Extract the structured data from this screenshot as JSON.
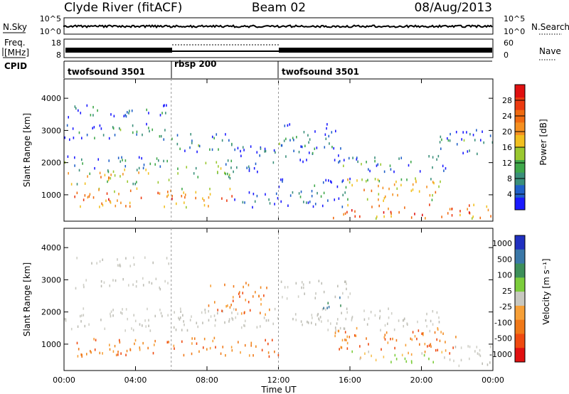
{
  "header": {
    "radar": "Clyde River (fitACF)",
    "beam": "Beam 02",
    "date": "08/Aug/2013"
  },
  "noise_panel": {
    "left_label": "N.Sky",
    "right_label": "N.Search",
    "left_ticks": [
      "10^5",
      "10^0"
    ],
    "right_ticks": [
      "10^5",
      "10^0"
    ]
  },
  "freq_panel": {
    "left_label_line1": "Freq.",
    "left_label_line2": "[MHz]",
    "right_label": "Nave",
    "left_ticks": [
      "18",
      "8"
    ],
    "right_ticks": [
      "60",
      "0"
    ]
  },
  "cpid_panel": {
    "label": "CPID",
    "programs": [
      {
        "name": "twofsound 3501",
        "start_hour": 0,
        "end_hour": 6
      },
      {
        "name": "rbsp 200",
        "start_hour": 6,
        "end_hour": 12
      },
      {
        "name": "twofsound 3501",
        "start_hour": 12,
        "end_hour": 24
      }
    ]
  },
  "chart_data": [
    {
      "type": "heatmap",
      "name": "power",
      "ylabel": "Slant Range [km]",
      "ylim": [
        180,
        4600
      ],
      "yticks": [
        "1000",
        "2000",
        "3000",
        "4000"
      ],
      "ytick_values": [
        1000,
        2000,
        3000,
        4000
      ],
      "colorbar": {
        "label": "Power [dB]",
        "ticks": [
          "4",
          "8",
          "12",
          "16",
          "20",
          "24",
          "28"
        ],
        "tick_values": [
          4,
          8,
          12,
          16,
          20,
          24,
          28
        ],
        "range": [
          0,
          32
        ],
        "colors": [
          "#1a1aff",
          "#2060c8",
          "#3a8f7a",
          "#3fa84a",
          "#9ac830",
          "#f2c020",
          "#f59020",
          "#f06a10",
          "#ec3a10",
          "#e01010"
        ]
      },
      "bands": [
        {
          "t0": 0.0,
          "t1": 6.0,
          "r0": 3400,
          "r1": 3800,
          "level": 9
        },
        {
          "t0": 0.0,
          "t1": 6.0,
          "r0": 2700,
          "r1": 3200,
          "level": 10
        },
        {
          "t0": 0.0,
          "t1": 6.0,
          "r0": 1800,
          "r1": 2200,
          "level": 11
        },
        {
          "t0": 0.0,
          "t1": 6.0,
          "r0": 1300,
          "r1": 1800,
          "level": 20
        },
        {
          "t0": 0.5,
          "t1": 6.0,
          "r0": 600,
          "r1": 1200,
          "level": 26
        },
        {
          "t0": 6.0,
          "t1": 9.5,
          "r0": 2300,
          "r1": 2900,
          "level": 11
        },
        {
          "t0": 6.0,
          "t1": 9.5,
          "r0": 1500,
          "r1": 2100,
          "level": 14
        },
        {
          "t0": 6.0,
          "t1": 9.5,
          "r0": 600,
          "r1": 1200,
          "level": 24
        },
        {
          "t0": 9.5,
          "t1": 12.0,
          "r0": 1700,
          "r1": 2600,
          "level": 8
        },
        {
          "t0": 9.5,
          "t1": 12.0,
          "r0": 600,
          "r1": 1100,
          "level": 8
        },
        {
          "t0": 12.0,
          "t1": 15.5,
          "r0": 2000,
          "r1": 3200,
          "level": 9
        },
        {
          "t0": 12.0,
          "t1": 16.0,
          "r0": 600,
          "r1": 1500,
          "level": 8
        },
        {
          "t0": 15.5,
          "t1": 21.5,
          "r0": 1700,
          "r1": 2200,
          "level": 10
        },
        {
          "t0": 15.5,
          "t1": 21.5,
          "r0": 800,
          "r1": 1500,
          "level": 22
        },
        {
          "t0": 15.0,
          "t1": 24.0,
          "r0": 250,
          "r1": 700,
          "level": 28
        },
        {
          "t0": 21.0,
          "t1": 24.0,
          "r0": 2200,
          "r1": 3000,
          "level": 9
        }
      ]
    },
    {
      "type": "heatmap",
      "name": "velocity",
      "ylabel": "Slant Range [km]",
      "ylim": [
        180,
        4600
      ],
      "yticks": [
        "1000",
        "2000",
        "3000",
        "4000"
      ],
      "ytick_values": [
        1000,
        2000,
        3000,
        4000
      ],
      "xlabel": "Time UT",
      "xticks": [
        "00:00",
        "04:00",
        "08:00",
        "12:00",
        "16:00",
        "20:00",
        "00:00"
      ],
      "xtick_values": [
        0,
        4,
        8,
        12,
        16,
        20,
        24
      ],
      "colorbar": {
        "label": "Velocity [m s⁻¹]",
        "ticks": [
          "1000",
          "500",
          "100",
          "25",
          "-25",
          "-100",
          "-500",
          "-1000"
        ],
        "colors": [
          "#2030c0",
          "#3a78a8",
          "#3d8f5a",
          "#7ccd3c",
          "#c8c8c0",
          "#f7a038",
          "#f07818",
          "#ef4a10",
          "#e01010"
        ]
      },
      "bands": [
        {
          "t0": 0.5,
          "t1": 6.0,
          "r0": 3400,
          "r1": 3700,
          "class": "ground"
        },
        {
          "t0": 0.5,
          "t1": 6.0,
          "r0": 2700,
          "r1": 3100,
          "class": "ground"
        },
        {
          "t0": 0.0,
          "t1": 12.0,
          "r0": 1400,
          "r1": 2100,
          "class": "ground"
        },
        {
          "t0": 0.5,
          "t1": 12.0,
          "r0": 600,
          "r1": 1200,
          "class": "away"
        },
        {
          "t0": 8.0,
          "t1": 11.5,
          "r0": 1900,
          "r1": 2900,
          "class": "away"
        },
        {
          "t0": 12.0,
          "t1": 16.0,
          "r0": 2400,
          "r1": 3000,
          "class": "ground"
        },
        {
          "t0": 14.5,
          "t1": 15.5,
          "r0": 2000,
          "r1": 2500,
          "class": "toward"
        },
        {
          "t0": 12.0,
          "t1": 21.0,
          "r0": 1400,
          "r1": 2100,
          "class": "ground"
        },
        {
          "t0": 15.0,
          "t1": 22.0,
          "r0": 700,
          "r1": 1500,
          "class": "away"
        },
        {
          "t0": 16.0,
          "t1": 21.5,
          "r0": 400,
          "r1": 800,
          "class": "weak"
        },
        {
          "t0": 21.5,
          "t1": 24.0,
          "r0": 300,
          "r1": 1000,
          "class": "ground"
        }
      ]
    }
  ]
}
